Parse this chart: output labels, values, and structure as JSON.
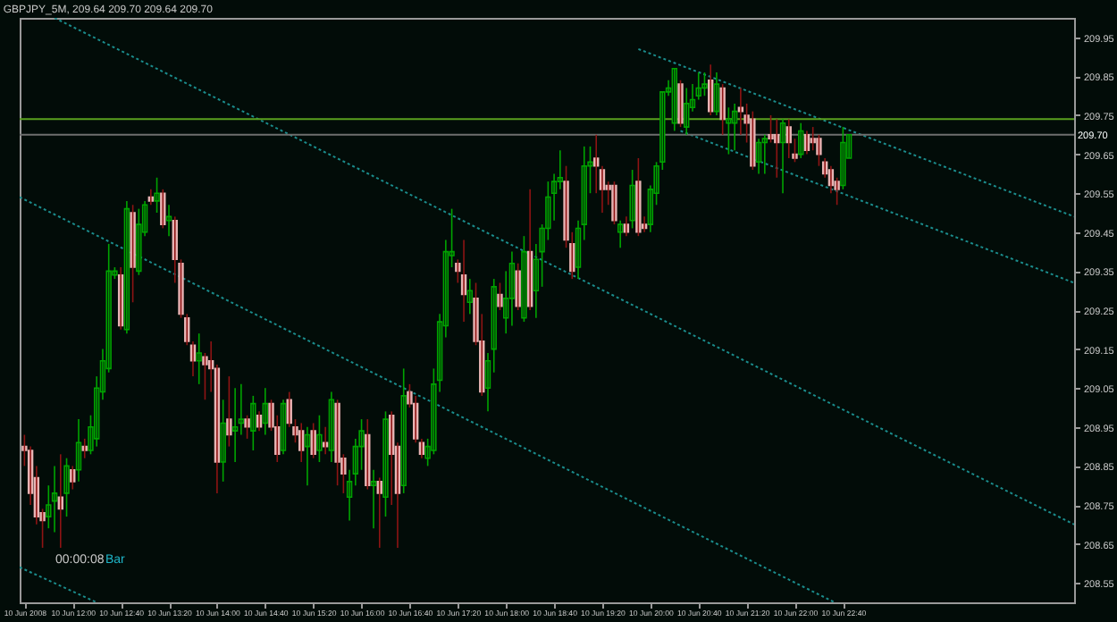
{
  "chart_data": {
    "type": "candlestick",
    "title": "GBPJPY_5M, 209.64 209.70 209.64 209.70",
    "x": [
      "2008-06-10T11:20",
      "2008-06-10T11:25",
      "2008-06-10T11:30",
      "2008-06-10T11:35",
      "2008-06-10T11:40",
      "2008-06-10T11:45",
      "2008-06-10T11:50",
      "2008-06-10T11:55",
      "2008-06-10T12:00",
      "2008-06-10T12:05",
      "2008-06-10T12:10",
      "2008-06-10T12:15",
      "2008-06-10T12:20",
      "2008-06-10T12:25",
      "2008-06-10T12:30",
      "2008-06-10T12:35",
      "2008-06-10T12:40",
      "2008-06-10T12:45",
      "2008-06-10T12:50",
      "2008-06-10T12:55",
      "2008-06-10T13:00",
      "2008-06-10T13:05",
      "2008-06-10T13:10",
      "2008-06-10T13:15",
      "2008-06-10T13:20",
      "2008-06-10T13:25",
      "2008-06-10T13:30",
      "2008-06-10T13:35",
      "2008-06-10T13:40",
      "2008-06-10T13:45",
      "2008-06-10T13:50",
      "2008-06-10T13:55",
      "2008-06-10T14:00",
      "2008-06-10T14:05",
      "2008-06-10T14:10",
      "2008-06-10T14:15",
      "2008-06-10T14:20",
      "2008-06-10T14:25",
      "2008-06-10T14:30",
      "2008-06-10T14:35",
      "2008-06-10T14:40",
      "2008-06-10T14:45",
      "2008-06-10T14:50",
      "2008-06-10T14:55",
      "2008-06-10T15:00",
      "2008-06-10T15:05",
      "2008-06-10T15:10",
      "2008-06-10T15:15",
      "2008-06-10T15:20",
      "2008-06-10T15:25",
      "2008-06-10T15:30",
      "2008-06-10T15:35",
      "2008-06-10T15:40",
      "2008-06-10T15:45",
      "2008-06-10T15:50",
      "2008-06-10T15:55",
      "2008-06-10T16:00",
      "2008-06-10T16:05",
      "2008-06-10T16:10",
      "2008-06-10T16:15",
      "2008-06-10T16:20",
      "2008-06-10T16:25",
      "2008-06-10T16:30",
      "2008-06-10T16:35",
      "2008-06-10T16:40",
      "2008-06-10T16:45",
      "2008-06-10T16:50",
      "2008-06-10T16:55",
      "2008-06-10T17:00",
      "2008-06-10T17:05",
      "2008-06-10T17:10",
      "2008-06-10T17:15",
      "2008-06-10T17:20",
      "2008-06-10T17:25",
      "2008-06-10T17:30",
      "2008-06-10T17:35",
      "2008-06-10T17:40",
      "2008-06-10T17:45",
      "2008-06-10T17:50",
      "2008-06-10T17:55",
      "2008-06-10T18:00",
      "2008-06-10T18:05",
      "2008-06-10T18:10",
      "2008-06-10T18:15",
      "2008-06-10T18:20",
      "2008-06-10T18:25",
      "2008-06-10T18:30",
      "2008-06-10T18:35",
      "2008-06-10T18:40",
      "2008-06-10T18:45",
      "2008-06-10T18:50",
      "2008-06-10T18:55",
      "2008-06-10T19:00",
      "2008-06-10T19:05",
      "2008-06-10T19:10",
      "2008-06-10T19:15",
      "2008-06-10T19:20",
      "2008-06-10T19:25",
      "2008-06-10T19:30",
      "2008-06-10T19:35",
      "2008-06-10T19:40",
      "2008-06-10T19:45",
      "2008-06-10T19:50",
      "2008-06-10T19:55",
      "2008-06-10T20:00",
      "2008-06-10T20:05",
      "2008-06-10T20:10",
      "2008-06-10T20:15",
      "2008-06-10T20:20",
      "2008-06-10T20:25",
      "2008-06-10T20:30",
      "2008-06-10T20:35",
      "2008-06-10T20:40",
      "2008-06-10T20:45",
      "2008-06-10T20:50",
      "2008-06-10T20:55",
      "2008-06-10T21:00",
      "2008-06-10T21:05",
      "2008-06-10T21:10",
      "2008-06-10T21:15",
      "2008-06-10T21:20",
      "2008-06-10T21:25",
      "2008-06-10T21:30",
      "2008-06-10T21:35",
      "2008-06-10T21:40",
      "2008-06-10T21:45",
      "2008-06-10T21:50",
      "2008-06-10T21:55",
      "2008-06-10T22:00",
      "2008-06-10T22:05",
      "2008-06-10T22:10",
      "2008-06-10T22:15",
      "2008-06-10T22:20",
      "2008-06-10T22:25",
      "2008-06-10T22:30",
      "2008-06-10T22:35",
      "2008-06-10T22:40",
      "2008-06-10T22:45"
    ],
    "ohlc": [
      [
        208.9,
        208.93,
        208.85,
        208.89
      ],
      [
        208.89,
        208.9,
        208.75,
        208.78
      ],
      [
        208.82,
        208.85,
        208.7,
        208.72
      ],
      [
        208.73,
        208.74,
        208.64,
        208.71
      ],
      [
        208.72,
        208.8,
        208.69,
        208.75
      ],
      [
        208.76,
        208.85,
        208.68,
        208.78
      ],
      [
        208.77,
        208.88,
        208.64,
        208.74
      ],
      [
        208.78,
        208.87,
        208.72,
        208.85
      ],
      [
        208.84,
        208.85,
        208.79,
        208.81
      ],
      [
        208.84,
        208.97,
        208.81,
        208.91
      ],
      [
        208.9,
        208.92,
        208.87,
        208.89
      ],
      [
        208.89,
        208.98,
        208.88,
        208.95
      ],
      [
        208.92,
        209.08,
        208.9,
        209.05
      ],
      [
        209.04,
        209.15,
        209.02,
        209.12
      ],
      [
        209.1,
        209.42,
        209.09,
        209.35
      ],
      [
        209.34,
        209.36,
        209.33,
        209.35
      ],
      [
        209.34,
        209.36,
        209.2,
        209.21
      ],
      [
        209.2,
        209.53,
        209.19,
        209.51
      ],
      [
        209.5,
        209.52,
        209.27,
        209.36
      ],
      [
        209.35,
        209.51,
        209.34,
        209.47
      ],
      [
        209.45,
        209.53,
        209.44,
        209.52
      ],
      [
        209.54,
        209.56,
        209.52,
        209.53
      ],
      [
        209.53,
        209.59,
        209.5,
        209.55
      ],
      [
        209.55,
        209.56,
        209.46,
        209.47
      ],
      [
        209.48,
        209.52,
        209.44,
        209.49
      ],
      [
        209.48,
        209.49,
        209.32,
        209.38
      ],
      [
        209.37,
        209.38,
        209.23,
        209.24
      ],
      [
        209.23,
        209.24,
        209.16,
        209.17
      ],
      [
        209.16,
        209.17,
        209.08,
        209.12
      ],
      [
        209.12,
        209.19,
        209.06,
        209.14
      ],
      [
        209.13,
        209.14,
        209.02,
        209.11
      ],
      [
        209.12,
        209.17,
        209.04,
        209.1
      ],
      [
        209.1,
        209.11,
        208.78,
        208.86
      ],
      [
        208.86,
        209.02,
        208.81,
        208.96
      ],
      [
        208.97,
        209.08,
        208.9,
        208.93
      ],
      [
        208.94,
        209.05,
        208.86,
        208.95
      ],
      [
        208.96,
        209.06,
        208.93,
        208.97
      ],
      [
        208.97,
        208.98,
        208.92,
        208.95
      ],
      [
        208.94,
        209.03,
        208.89,
        209.01
      ],
      [
        208.98,
        208.99,
        208.94,
        208.95
      ],
      [
        208.96,
        209.05,
        208.93,
        209.01
      ],
      [
        209.01,
        209.02,
        208.94,
        208.95
      ],
      [
        208.95,
        208.98,
        208.86,
        208.88
      ],
      [
        208.89,
        209.02,
        208.88,
        209.01
      ],
      [
        209.02,
        209.04,
        208.95,
        208.96
      ],
      [
        208.95,
        208.97,
        208.91,
        208.93
      ],
      [
        208.94,
        208.96,
        208.86,
        208.89
      ],
      [
        208.9,
        208.95,
        208.8,
        208.93
      ],
      [
        208.94,
        208.96,
        208.87,
        208.88
      ],
      [
        208.89,
        208.98,
        208.86,
        208.93
      ],
      [
        208.91,
        208.95,
        208.88,
        208.9
      ],
      [
        208.89,
        209.04,
        208.86,
        209.02
      ],
      [
        209.01,
        209.02,
        208.8,
        208.86
      ],
      [
        208.87,
        208.88,
        208.78,
        208.83
      ],
      [
        208.77,
        208.84,
        208.71,
        208.81
      ],
      [
        208.83,
        208.92,
        208.8,
        208.9
      ],
      [
        208.9,
        208.97,
        208.84,
        208.94
      ],
      [
        208.93,
        208.97,
        208.79,
        208.8
      ],
      [
        208.8,
        208.84,
        208.69,
        208.81
      ],
      [
        208.81,
        208.82,
        208.64,
        208.78
      ],
      [
        208.77,
        208.99,
        208.72,
        208.97
      ],
      [
        208.98,
        208.99,
        208.75,
        208.88
      ],
      [
        208.9,
        208.91,
        208.64,
        208.78
      ],
      [
        208.8,
        209.1,
        208.78,
        209.03
      ],
      [
        209.04,
        209.06,
        209.0,
        209.01
      ],
      [
        209.01,
        209.03,
        208.91,
        208.92
      ],
      [
        208.91,
        208.92,
        208.87,
        208.88
      ],
      [
        208.87,
        208.92,
        208.85,
        208.9
      ],
      [
        208.89,
        209.1,
        208.88,
        209.06
      ],
      [
        209.07,
        209.24,
        209.04,
        209.22
      ],
      [
        209.21,
        209.43,
        209.18,
        209.4
      ],
      [
        209.39,
        209.51,
        209.36,
        209.4
      ],
      [
        209.37,
        209.38,
        209.32,
        209.35
      ],
      [
        209.34,
        209.43,
        209.22,
        209.29
      ],
      [
        209.27,
        209.33,
        209.24,
        209.3
      ],
      [
        209.28,
        209.32,
        209.16,
        209.17
      ],
      [
        209.17,
        209.24,
        209.03,
        209.04
      ],
      [
        209.05,
        209.14,
        208.99,
        209.12
      ],
      [
        209.15,
        209.33,
        209.09,
        209.31
      ],
      [
        209.29,
        209.32,
        209.25,
        209.26
      ],
      [
        209.23,
        209.35,
        209.19,
        209.28
      ],
      [
        209.28,
        209.4,
        209.21,
        209.37
      ],
      [
        209.35,
        209.37,
        209.25,
        209.26
      ],
      [
        209.23,
        209.44,
        209.22,
        209.4
      ],
      [
        209.4,
        209.56,
        209.25,
        209.26
      ],
      [
        209.3,
        209.42,
        209.23,
        209.38
      ],
      [
        209.4,
        209.47,
        209.31,
        209.46
      ],
      [
        209.46,
        209.58,
        209.43,
        209.54
      ],
      [
        209.55,
        209.6,
        209.48,
        209.58
      ],
      [
        209.58,
        209.66,
        209.56,
        209.59
      ],
      [
        209.58,
        209.62,
        209.41,
        209.43
      ],
      [
        209.42,
        209.45,
        209.33,
        209.35
      ],
      [
        209.36,
        209.48,
        209.33,
        209.46
      ],
      [
        209.47,
        209.67,
        209.43,
        209.62
      ],
      [
        209.62,
        209.67,
        209.55,
        209.63
      ],
      [
        209.64,
        209.7,
        209.55,
        209.62
      ],
      [
        209.61,
        209.62,
        209.5,
        209.56
      ],
      [
        209.57,
        209.58,
        209.52,
        209.56
      ],
      [
        209.57,
        209.58,
        209.47,
        209.48
      ],
      [
        209.45,
        209.48,
        209.41,
        209.47
      ],
      [
        209.47,
        209.49,
        209.44,
        209.45
      ],
      [
        209.48,
        209.61,
        209.46,
        209.57
      ],
      [
        209.58,
        209.64,
        209.44,
        209.45
      ],
      [
        209.47,
        209.49,
        209.45,
        209.46
      ],
      [
        209.47,
        209.57,
        209.45,
        209.56
      ],
      [
        209.55,
        209.63,
        209.52,
        209.62
      ],
      [
        209.63,
        209.81,
        209.61,
        209.81
      ],
      [
        209.81,
        209.84,
        209.8,
        209.82
      ],
      [
        209.73,
        209.87,
        209.71,
        209.87
      ],
      [
        209.83,
        209.84,
        209.72,
        209.73
      ],
      [
        209.72,
        209.82,
        209.7,
        209.78
      ],
      [
        209.77,
        209.83,
        209.76,
        209.79
      ],
      [
        209.8,
        209.86,
        209.79,
        209.82
      ],
      [
        209.82,
        209.86,
        209.8,
        209.83
      ],
      [
        209.84,
        209.88,
        209.75,
        209.76
      ],
      [
        209.76,
        209.86,
        209.75,
        209.83
      ],
      [
        209.82,
        209.83,
        209.7,
        209.74
      ],
      [
        209.73,
        209.77,
        209.65,
        209.74
      ],
      [
        209.73,
        209.78,
        209.66,
        209.76
      ],
      [
        209.77,
        209.82,
        209.7,
        209.76
      ],
      [
        209.75,
        209.78,
        209.68,
        209.73
      ],
      [
        209.74,
        209.76,
        209.61,
        209.62
      ],
      [
        209.63,
        209.69,
        209.6,
        209.68
      ],
      [
        209.68,
        209.7,
        209.6,
        209.69
      ],
      [
        209.7,
        209.75,
        209.68,
        209.69
      ],
      [
        209.7,
        209.74,
        209.59,
        209.68
      ],
      [
        209.68,
        209.74,
        209.55,
        209.73
      ],
      [
        209.72,
        209.74,
        209.64,
        209.68
      ],
      [
        209.65,
        209.69,
        209.63,
        209.64
      ],
      [
        209.65,
        209.73,
        209.64,
        209.71
      ],
      [
        209.7,
        209.71,
        209.65,
        209.66
      ],
      [
        209.69,
        209.72,
        209.66,
        209.68
      ],
      [
        209.69,
        209.7,
        209.62,
        209.65
      ],
      [
        209.63,
        209.64,
        209.59,
        209.6
      ],
      [
        209.61,
        209.62,
        209.55,
        209.57
      ],
      [
        209.58,
        209.59,
        209.52,
        209.56
      ],
      [
        209.57,
        209.72,
        209.56,
        209.68
      ],
      [
        209.64,
        209.7,
        209.64,
        209.7
      ]
    ],
    "series": [
      {
        "type": "line",
        "color": "#1b8c8c",
        "x": [
          "2008-06-10T19:50",
          "2008-06-11T01:52"
        ],
        "values": [
          209.92,
          209.49
        ]
      },
      {
        "type": "line",
        "color": "#1b8c8c",
        "x": [
          "2008-06-10T20:25",
          "2008-06-11T01:52"
        ],
        "values": [
          209.71,
          209.32
        ]
      },
      {
        "type": "line",
        "color": "#1b8c8c",
        "x": [
          "2008-06-10T11:45",
          "2008-06-11T01:52"
        ],
        "values": [
          210.0,
          208.7
        ]
      },
      {
        "type": "line",
        "color": "#1b8c8c",
        "x": [
          "2008-06-10T11:16",
          "2008-06-10T22:33"
        ],
        "values": [
          209.54,
          208.5
        ]
      },
      {
        "type": "line",
        "color": "#1b8c8c",
        "x": [
          "2008-06-10T11:16",
          "2008-06-10T12:20"
        ],
        "values": [
          208.59,
          208.5
        ]
      }
    ],
    "line_style": "dotted",
    "ref_lines": [
      {
        "axis": "y",
        "value": 209.74,
        "color": "#5aa01e",
        "line_style": "solid"
      },
      {
        "axis": "y",
        "value": 209.7,
        "label": "209.70",
        "color": "#6e6e6e",
        "line_style": "solid"
      }
    ],
    "xlim": [
      "2008-06-10T11:16",
      "2008-06-11T01:52"
    ],
    "xticks": [
      {
        "value": "2008-06-10T11:20",
        "label": "10 Jun 2008"
      },
      {
        "value": "2008-06-10T12:00",
        "label": "10 Jun 12:00"
      },
      {
        "value": "2008-06-10T12:40",
        "label": "10 Jun 12:40"
      },
      {
        "value": "2008-06-10T13:20",
        "label": "10 Jun 13:20"
      },
      {
        "value": "2008-06-10T14:00",
        "label": "10 Jun 14:00"
      },
      {
        "value": "2008-06-10T14:40",
        "label": "10 Jun 14:40"
      },
      {
        "value": "2008-06-10T15:20",
        "label": "10 Jun 15:20"
      },
      {
        "value": "2008-06-10T16:00",
        "label": "10 Jun 16:00"
      },
      {
        "value": "2008-06-10T16:40",
        "label": "10 Jun 16:40"
      },
      {
        "value": "2008-06-10T17:20",
        "label": "10 Jun 17:20"
      },
      {
        "value": "2008-06-10T18:00",
        "label": "10 Jun 18:00"
      },
      {
        "value": "2008-06-10T18:40",
        "label": "10 Jun 18:40"
      },
      {
        "value": "2008-06-10T19:20",
        "label": "10 Jun 19:20"
      },
      {
        "value": "2008-06-10T20:00",
        "label": "10 Jun 20:00"
      },
      {
        "value": "2008-06-10T20:40",
        "label": "10 Jun 20:40"
      },
      {
        "value": "2008-06-10T21:20",
        "label": "10 Jun 21:20"
      },
      {
        "value": "2008-06-10T22:00",
        "label": "10 Jun 22:00"
      },
      {
        "value": "2008-06-10T22:40",
        "label": "10 Jun 22:40"
      }
    ],
    "ylim": [
      208.5,
      210.0
    ],
    "yticks": [
      208.55,
      208.65,
      208.75,
      208.85,
      208.95,
      209.05,
      209.15,
      209.25,
      209.35,
      209.45,
      209.55,
      209.65,
      209.75,
      209.85,
      209.95
    ],
    "annotations": [
      "00:00:08",
      "Bar"
    ]
  }
}
